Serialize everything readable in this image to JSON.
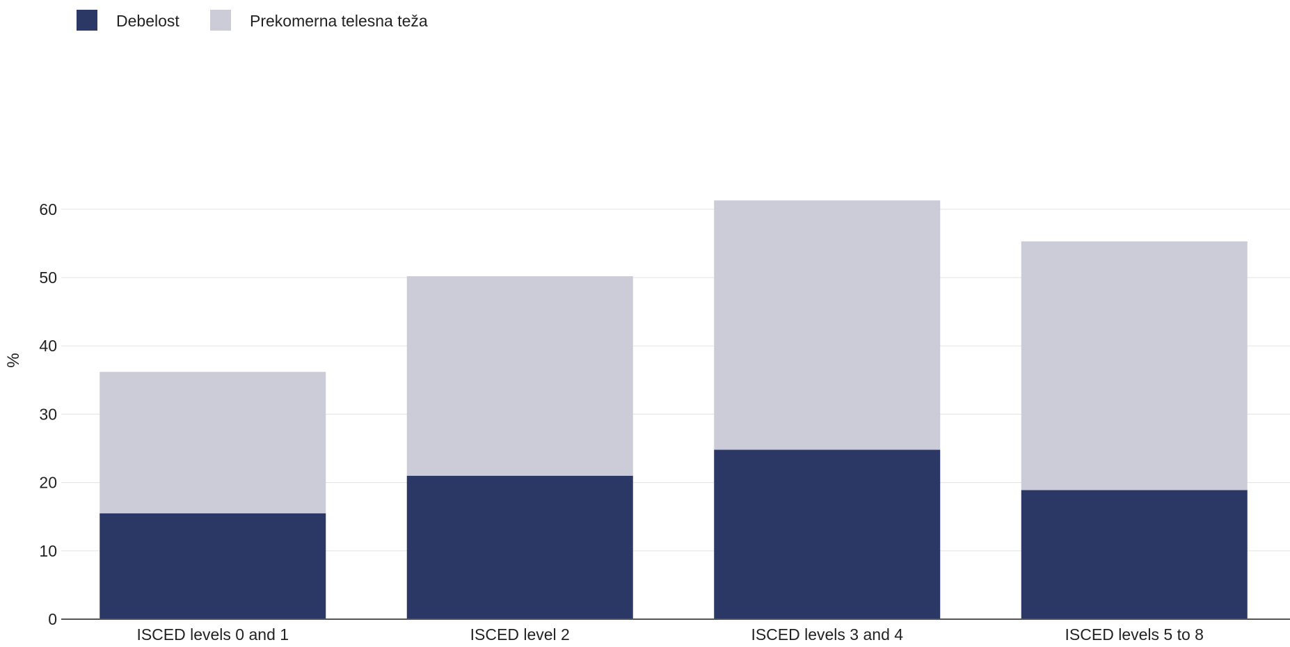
{
  "chart_data": {
    "type": "bar",
    "stacked": true,
    "title": "",
    "xlabel": "",
    "ylabel": "%",
    "categories": [
      "ISCED levels 0 and 1",
      "ISCED level 2",
      "ISCED levels 3 and 4",
      "ISCED levels 5 to 8"
    ],
    "series": [
      {
        "name": "Debelost",
        "color": "#2b3866",
        "values": [
          15.5,
          21.0,
          24.8,
          18.9
        ]
      },
      {
        "name": "Prekomerna telesna teža",
        "color": "#cbccd8",
        "values": [
          20.7,
          29.2,
          36.5,
          36.4
        ]
      }
    ],
    "ylim": [
      0,
      65
    ],
    "yticks": [
      0,
      10,
      20,
      30,
      40,
      50,
      60
    ],
    "grid": true,
    "legend": "top-left"
  }
}
